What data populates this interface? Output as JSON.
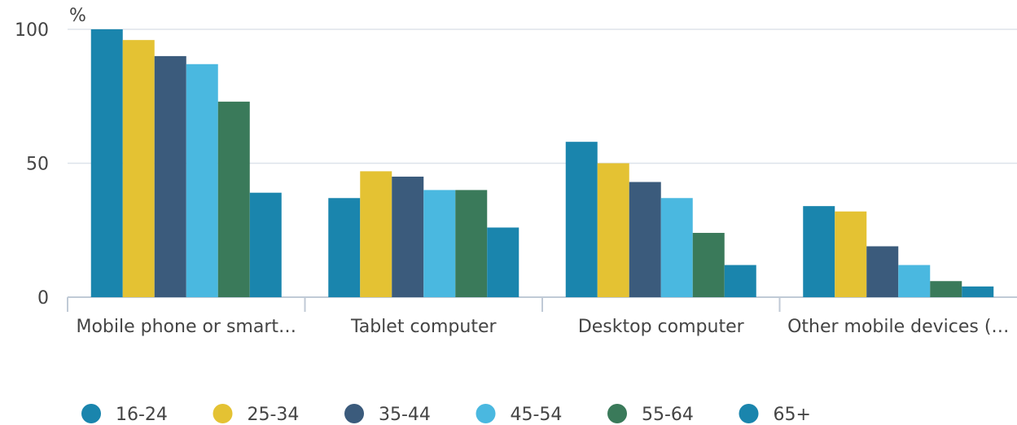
{
  "chart_data": {
    "type": "bar",
    "y_label": "%",
    "categories": [
      "Mobile phone or smart…",
      "Tablet computer",
      "Desktop computer",
      "Other mobile devices (…"
    ],
    "series": [
      {
        "name": "16-24",
        "color": "#1a85ad",
        "values": [
          100,
          37,
          58,
          34
        ]
      },
      {
        "name": "25-34",
        "color": "#e4c233",
        "values": [
          96,
          47,
          50,
          32
        ]
      },
      {
        "name": "35-44",
        "color": "#3b5b7c",
        "values": [
          90,
          45,
          43,
          19
        ]
      },
      {
        "name": "45-54",
        "color": "#4ab8e0",
        "values": [
          87,
          40,
          37,
          12
        ]
      },
      {
        "name": "55-64",
        "color": "#3a7a5a",
        "values": [
          73,
          40,
          24,
          6
        ]
      },
      {
        "name": "65+",
        "color": "#1a85ad",
        "values": [
          39,
          26,
          12,
          4
        ]
      }
    ],
    "ylim": [
      0,
      100
    ],
    "yticks": [
      0,
      50,
      100
    ],
    "grid": true,
    "legend": "bottom"
  }
}
